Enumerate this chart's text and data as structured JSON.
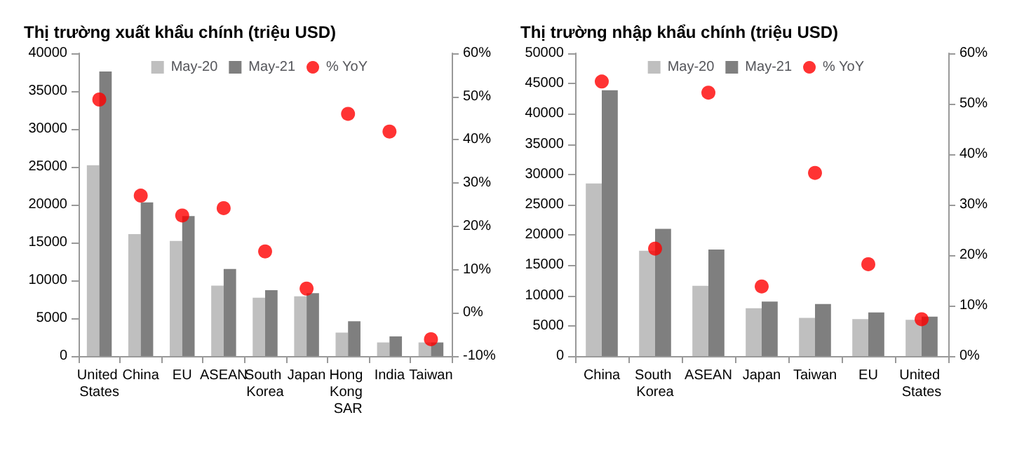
{
  "chart_data": [
    {
      "type": "bar",
      "title": "Thị trường xuất khẩu chính (triệu USD)",
      "categories": [
        "United States",
        "China",
        "EU",
        "ASEAN",
        "South Korea",
        "Japan",
        "Hong Kong SAR",
        "India",
        "Taiwan"
      ],
      "series": [
        {
          "name": "May-20",
          "color": "#bfbfbf",
          "values": [
            25200,
            16100,
            15200,
            9300,
            7700,
            7900,
            3100,
            1800,
            1800
          ]
        },
        {
          "name": "May-21",
          "color": "#7f7f7f",
          "values": [
            37600,
            20300,
            18500,
            11500,
            8700,
            8300,
            4600,
            2600,
            1800
          ]
        },
        {
          "name": "% YoY",
          "type": "scatter",
          "axis": "y2",
          "color": "#ff0000",
          "marker": "circle",
          "values": [
            49.3,
            27.1,
            22.5,
            24.2,
            14.2,
            5.6,
            46,
            41.9,
            -6.1
          ]
        }
      ],
      "ylim": [
        0,
        40000
      ],
      "yticks": [
        0,
        5000,
        10000,
        15000,
        20000,
        25000,
        30000,
        35000,
        40000
      ],
      "y2lim": [
        -10,
        60
      ],
      "y2ticks": [
        {
          "value": -10,
          "label": "-10%"
        },
        {
          "value": 0,
          "label": "0%"
        },
        {
          "value": 10,
          "label": "10%"
        },
        {
          "value": 20,
          "label": "20%"
        },
        {
          "value": 30,
          "label": "30%"
        },
        {
          "value": 40,
          "label": "40%"
        },
        {
          "value": 50,
          "label": "50%"
        },
        {
          "value": 60,
          "label": "60%"
        }
      ],
      "grid": false,
      "legend": "top"
    },
    {
      "type": "bar",
      "title": "Thị trường nhập khẩu chính (triệu USD)",
      "categories": [
        "China",
        "South Korea",
        "ASEAN",
        "Japan",
        "Taiwan",
        "EU",
        "United States"
      ],
      "series": [
        {
          "name": "May-20",
          "color": "#bfbfbf",
          "values": [
            28500,
            17400,
            11600,
            7900,
            6300,
            6100,
            6000
          ]
        },
        {
          "name": "May-21",
          "color": "#7f7f7f",
          "values": [
            43900,
            21000,
            17600,
            9000,
            8600,
            7200,
            6500
          ]
        },
        {
          "name": "% YoY",
          "type": "scatter",
          "axis": "y2",
          "color": "#ff0000",
          "marker": "circle",
          "values": [
            54.4,
            21.3,
            52.2,
            13.8,
            36.3,
            18.2,
            7.3
          ]
        }
      ],
      "ylim": [
        0,
        50000
      ],
      "yticks": [
        0,
        5000,
        10000,
        15000,
        20000,
        25000,
        30000,
        35000,
        40000,
        45000,
        50000
      ],
      "y2lim": [
        0,
        60
      ],
      "y2ticks": [
        {
          "value": 0,
          "label": "0%"
        },
        {
          "value": 10,
          "label": "10%"
        },
        {
          "value": 20,
          "label": "20%"
        },
        {
          "value": 30,
          "label": "30%"
        },
        {
          "value": 40,
          "label": "40%"
        },
        {
          "value": 50,
          "label": "50%"
        },
        {
          "value": 60,
          "label": "60%"
        }
      ],
      "grid": false,
      "legend": "top"
    }
  ]
}
